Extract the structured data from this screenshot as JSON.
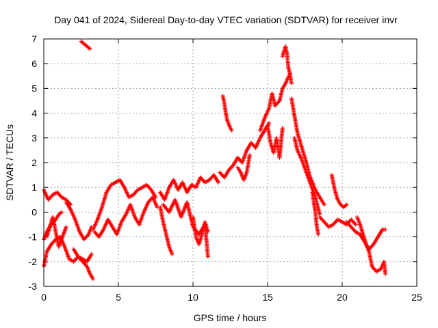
{
  "chart_data": {
    "type": "scatter",
    "title": "Day 041 of 2024, Sidereal Day-to-day VTEC variation (SDTVAR) for receiver invr",
    "xlabel": "GPS time / hours",
    "ylabel": "SDTVAR / TECUs",
    "xlim": [
      0,
      25
    ],
    "ylim": [
      -3,
      7
    ],
    "xticks": [
      0,
      5,
      10,
      15,
      20,
      25
    ],
    "yticks": [
      -3,
      -2,
      -1,
      0,
      1,
      2,
      3,
      4,
      5,
      6,
      7
    ],
    "grid": true,
    "marker": "+",
    "color": "#ff0000",
    "series": [
      {
        "name": "SDTVAR",
        "x": [
          0.0,
          0.3,
          0.6,
          0.9,
          1.2,
          1.5,
          1.8
        ],
        "y": [
          0.9,
          0.5,
          0.7,
          0.8,
          0.6,
          0.5,
          0.3
        ]
      },
      {
        "name": "SDTVAR",
        "x": [
          1.5,
          1.8,
          2.1,
          2.4,
          2.7,
          3.0,
          3.2
        ],
        "y": [
          0.4,
          0.1,
          -0.3,
          -0.8,
          -1.1,
          -0.9,
          -0.6
        ]
      },
      {
        "name": "SDTVAR",
        "x": [
          0.0,
          0.2,
          0.5,
          0.8,
          1.1,
          1.4,
          1.7,
          2.0,
          2.3,
          2.6,
          2.9,
          3.2
        ],
        "y": [
          -2.2,
          -1.6,
          -1.3,
          -1.1,
          -1.0,
          -1.4,
          -1.9,
          -2.0,
          -1.8,
          -1.9,
          -2.0,
          -1.7
        ]
      },
      {
        "name": "SDTVAR",
        "x": [
          0.0,
          0.2,
          0.5,
          0.8,
          1.0,
          1.2
        ],
        "y": [
          -1.1,
          -0.8,
          -0.5,
          -0.3,
          -0.1,
          0.0
        ]
      },
      {
        "name": "SDTVAR",
        "x": [
          2.0,
          2.3,
          2.6,
          2.9,
          3.1,
          3.3
        ],
        "y": [
          -1.5,
          -1.8,
          -2.0,
          -2.2,
          -2.5,
          -2.7
        ]
      },
      {
        "name": "SDTVAR",
        "x": [
          0.2,
          0.6,
          1.0,
          1.5
        ],
        "y": [
          -1.0,
          -0.2,
          -1.4,
          -0.6
        ]
      },
      {
        "name": "SDTVAR",
        "x": [
          2.5,
          2.7,
          2.9,
          3.1
        ],
        "y": [
          6.9,
          6.8,
          6.7,
          6.6
        ]
      },
      {
        "name": "SDTVAR",
        "x": [
          3.3,
          3.6,
          3.9,
          4.2,
          4.5,
          4.8,
          5.1,
          5.4,
          5.7,
          6.0,
          6.3,
          6.6,
          6.9,
          7.2,
          7.5
        ],
        "y": [
          -0.7,
          -0.3,
          0.2,
          0.8,
          1.1,
          1.2,
          1.3,
          1.0,
          0.6,
          0.7,
          0.9,
          1.0,
          1.1,
          0.9,
          0.6
        ]
      },
      {
        "name": "SDTVAR",
        "x": [
          3.4,
          3.7,
          4.0,
          4.3,
          4.6,
          4.9,
          5.2,
          5.5,
          5.8,
          6.1,
          6.4,
          6.7,
          7.0,
          7.3,
          7.6
        ],
        "y": [
          -0.8,
          -1.0,
          -0.7,
          -0.3,
          -0.6,
          -0.9,
          -0.4,
          -0.1,
          0.3,
          -0.2,
          -0.5,
          0.0,
          0.4,
          0.6,
          0.2
        ]
      },
      {
        "name": "SDTVAR",
        "x": [
          7.8,
          8.1,
          8.4,
          8.7,
          9.0,
          9.3,
          9.6,
          9.9,
          10.2,
          10.5,
          10.8,
          11.1,
          11.4,
          11.7
        ],
        "y": [
          0.8,
          0.5,
          1.0,
          1.3,
          0.9,
          1.2,
          0.8,
          1.1,
          1.0,
          1.4,
          1.2,
          1.3,
          1.5,
          1.2
        ]
      },
      {
        "name": "SDTVAR",
        "x": [
          7.8,
          8.0,
          8.2,
          8.4,
          8.6
        ],
        "y": [
          0.2,
          -0.4,
          -0.9,
          -1.4,
          -1.7
        ]
      },
      {
        "name": "SDTVAR",
        "x": [
          8.0,
          8.4,
          8.8,
          9.2,
          9.6,
          10.0,
          10.4,
          10.8,
          11.0
        ],
        "y": [
          0.3,
          0.0,
          0.5,
          -0.2,
          0.4,
          -0.6,
          -0.9,
          -0.5,
          -1.8
        ]
      },
      {
        "name": "SDTVAR",
        "x": [
          10.0,
          10.2,
          10.4,
          10.6,
          10.8,
          11.0
        ],
        "y": [
          -0.2,
          -1.0,
          -1.3,
          -0.9,
          -0.4,
          -0.8
        ]
      },
      {
        "name": "SDTVAR",
        "x": [
          11.8,
          12.1,
          12.4,
          12.7,
          13.0,
          13.3,
          13.6,
          13.9,
          14.2,
          14.5,
          14.8,
          15.1
        ],
        "y": [
          1.6,
          1.4,
          1.7,
          1.9,
          2.2,
          2.0,
          2.5,
          2.8,
          2.6,
          3.0,
          3.3,
          3.6
        ]
      },
      {
        "name": "SDTVAR",
        "x": [
          12.0,
          12.1,
          12.2,
          12.3,
          12.5,
          12.6
        ],
        "y": [
          4.7,
          4.4,
          4.0,
          3.7,
          3.4,
          3.3
        ]
      },
      {
        "name": "SDTVAR",
        "x": [
          13.0,
          13.2,
          13.4,
          13.6,
          13.8
        ],
        "y": [
          1.8,
          1.6,
          1.3,
          1.6,
          2.3
        ]
      },
      {
        "name": "SDTVAR",
        "x": [
          14.5,
          14.8,
          15.1,
          15.3,
          15.5,
          15.8,
          16.0,
          16.2,
          16.5
        ],
        "y": [
          3.3,
          3.8,
          4.2,
          4.8,
          4.3,
          4.5,
          5.0,
          5.2,
          5.6
        ]
      },
      {
        "name": "SDTVAR",
        "x": [
          15.0,
          15.2,
          15.4,
          15.6,
          15.8,
          16.0
        ],
        "y": [
          3.5,
          2.8,
          2.4,
          3.0,
          2.2,
          3.4
        ]
      },
      {
        "name": "SDTVAR",
        "x": [
          16.0,
          16.2,
          16.3,
          16.4,
          16.5,
          16.6
        ],
        "y": [
          6.3,
          6.7,
          6.4,
          5.8,
          5.6,
          5.2
        ]
      },
      {
        "name": "SDTVAR",
        "x": [
          16.6,
          16.8,
          17.0,
          17.2,
          17.4,
          17.6,
          17.8,
          18.0,
          18.2,
          18.4,
          18.6,
          18.8
        ],
        "y": [
          4.6,
          3.9,
          3.2,
          2.8,
          2.4,
          2.0,
          1.5,
          1.2,
          0.9,
          0.7,
          0.5,
          0.3
        ]
      },
      {
        "name": "SDTVAR",
        "x": [
          16.8,
          17.0,
          17.3,
          17.6,
          17.9,
          18.2,
          18.5
        ],
        "y": [
          3.0,
          2.5,
          2.1,
          1.6,
          1.1,
          0.6,
          -0.1
        ]
      },
      {
        "name": "SDTVAR",
        "x": [
          18.0,
          18.2,
          18.3,
          18.4
        ],
        "y": [
          0.8,
          0.0,
          -0.6,
          -0.9
        ]
      },
      {
        "name": "SDTVAR",
        "x": [
          18.5,
          18.8,
          19.1,
          19.4,
          19.7,
          20.0,
          20.3,
          20.6,
          20.9
        ],
        "y": [
          -0.2,
          -0.4,
          -0.6,
          -0.5,
          -0.3,
          -0.4,
          -0.5,
          -0.3,
          -0.5
        ]
      },
      {
        "name": "SDTVAR",
        "x": [
          19.3,
          19.5,
          19.7,
          19.9,
          20.1,
          20.3
        ],
        "y": [
          1.5,
          0.9,
          0.5,
          0.3,
          0.2,
          0.3
        ]
      },
      {
        "name": "SDTVAR",
        "x": [
          20.3,
          20.6,
          20.9,
          21.2,
          21.5,
          21.8,
          22.1,
          22.4,
          22.7,
          22.9
        ],
        "y": [
          -0.4,
          -0.6,
          -0.8,
          -0.9,
          -1.2,
          -1.5,
          -1.3,
          -1.0,
          -0.7,
          -0.7
        ]
      },
      {
        "name": "SDTVAR",
        "x": [
          21.0,
          21.2,
          21.4,
          21.6,
          21.8,
          22.0,
          22.3,
          22.6,
          22.8,
          22.9
        ],
        "y": [
          -0.2,
          -0.5,
          -0.9,
          -1.3,
          -1.6,
          -2.2,
          -2.4,
          -2.3,
          -2.0,
          -2.5
        ]
      }
    ]
  }
}
